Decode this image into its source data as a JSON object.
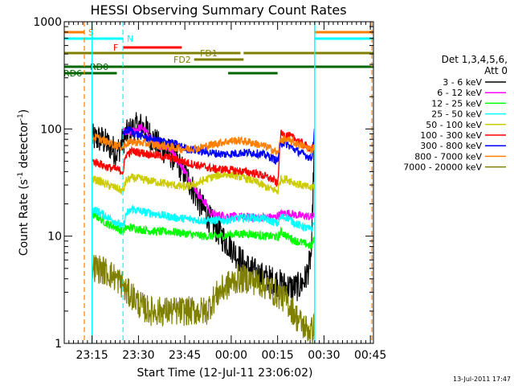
{
  "chart_data": {
    "type": "line",
    "title": "HESSI Observing Summary Count Rates",
    "xlabel": "Start Time (12-Jul-11 23:06:02)",
    "ylabel_main": "Count Rate (s",
    "ylabel_sup": "-1",
    "ylabel_tail": " detector",
    "ylabel_close": ")",
    "yscale": "log",
    "ylim": [
      1,
      1000
    ],
    "xlim_minutes": [
      0,
      100
    ],
    "x_ticks": [
      {
        "t": 9,
        "label": "23:15"
      },
      {
        "t": 24,
        "label": "23:30"
      },
      {
        "t": 39,
        "label": "23:45"
      },
      {
        "t": 54,
        "label": "00:00"
      },
      {
        "t": 69,
        "label": "00:15"
      },
      {
        "t": 84,
        "label": "00:30"
      },
      {
        "t": 99,
        "label": "00:45"
      }
    ],
    "y_ticks": [
      {
        "v": 1,
        "label": "1"
      },
      {
        "v": 10,
        "label": "10"
      },
      {
        "v": 100,
        "label": "100"
      },
      {
        "v": 1000,
        "label": "1000"
      }
    ],
    "legend": {
      "header": [
        "Det 1,3,4,5,6,",
        "Att 0"
      ],
      "placement": "right"
    },
    "series": [
      {
        "name": "3 - 6 keV",
        "color": "#000000",
        "points": [
          [
            9,
            82
          ],
          [
            12,
            80
          ],
          [
            15,
            68
          ],
          [
            17,
            60
          ],
          [
            20,
            88
          ],
          [
            23,
            104
          ],
          [
            25,
            106
          ],
          [
            27,
            95
          ],
          [
            28,
            85
          ],
          [
            30,
            72
          ],
          [
            32,
            65
          ],
          [
            34,
            60
          ],
          [
            36,
            52
          ],
          [
            38,
            42
          ],
          [
            40,
            34
          ],
          [
            42,
            26
          ],
          [
            44,
            20
          ],
          [
            46,
            16
          ],
          [
            48,
            13
          ],
          [
            50,
            11
          ],
          [
            52,
            9
          ],
          [
            54,
            8
          ],
          [
            56,
            6.5
          ],
          [
            58,
            5.5
          ],
          [
            60,
            5
          ],
          [
            62,
            4.5
          ],
          [
            64,
            4.2
          ],
          [
            66,
            4
          ],
          [
            68,
            3.8
          ],
          [
            70,
            3.6
          ],
          [
            72,
            3.4
          ],
          [
            74,
            3.3
          ],
          [
            76,
            3.4
          ],
          [
            78,
            4
          ],
          [
            79,
            5
          ],
          [
            80,
            7
          ],
          [
            81,
            110
          ]
        ]
      },
      {
        "name": "6 - 12 keV",
        "color": "#ff00ff",
        "points": [
          [
            19,
            95
          ],
          [
            21,
            90
          ],
          [
            23,
            98
          ],
          [
            25,
            104
          ],
          [
            27,
            90
          ],
          [
            29,
            75
          ],
          [
            31,
            70
          ],
          [
            33,
            68
          ],
          [
            35,
            62
          ],
          [
            36,
            55
          ],
          [
            38,
            45
          ],
          [
            40,
            36
          ],
          [
            42,
            29
          ],
          [
            44,
            23
          ],
          [
            46,
            20
          ],
          [
            47,
            17
          ],
          [
            48,
            16
          ],
          [
            52,
            15.5
          ],
          [
            58,
            15
          ],
          [
            64,
            15
          ],
          [
            68,
            15
          ],
          [
            70,
            16
          ],
          [
            72,
            16.5
          ],
          [
            74,
            16
          ],
          [
            76,
            15.5
          ],
          [
            78,
            15.5
          ],
          [
            80,
            15
          ],
          [
            81,
            16
          ]
        ]
      },
      {
        "name": "12 - 25 keV",
        "color": "#00ff00",
        "points": [
          [
            9,
            16
          ],
          [
            11,
            15
          ],
          [
            14,
            13
          ],
          [
            17,
            12
          ],
          [
            19,
            11
          ],
          [
            20,
            12
          ],
          [
            22,
            12
          ],
          [
            25,
            11.5
          ],
          [
            30,
            11
          ],
          [
            35,
            11
          ],
          [
            40,
            10.5
          ],
          [
            45,
            10
          ],
          [
            50,
            10
          ],
          [
            55,
            10.5
          ],
          [
            60,
            10.5
          ],
          [
            65,
            10
          ],
          [
            68,
            10
          ],
          [
            69,
            9.5
          ],
          [
            70,
            11
          ],
          [
            72,
            10
          ],
          [
            75,
            9
          ],
          [
            78,
            8.5
          ],
          [
            80,
            8
          ],
          [
            81,
            10
          ]
        ]
      },
      {
        "name": "25 - 50 keV",
        "color": "#00ffff",
        "points": [
          [
            9,
            18
          ],
          [
            11,
            17
          ],
          [
            14,
            15
          ],
          [
            17,
            13.5
          ],
          [
            19,
            12
          ],
          [
            20,
            16
          ],
          [
            22,
            18
          ],
          [
            25,
            17
          ],
          [
            30,
            16
          ],
          [
            35,
            15
          ],
          [
            40,
            14.5
          ],
          [
            45,
            14
          ],
          [
            50,
            14
          ],
          [
            55,
            14.5
          ],
          [
            60,
            15
          ],
          [
            65,
            14.5
          ],
          [
            68,
            13.5
          ],
          [
            69,
            13
          ],
          [
            70,
            15
          ],
          [
            72,
            15
          ],
          [
            75,
            13
          ],
          [
            78,
            12
          ],
          [
            80,
            11.5
          ],
          [
            81,
            14
          ]
        ]
      },
      {
        "name": "50 - 100 keV",
        "color": "#cccc00",
        "points": [
          [
            9,
            34
          ],
          [
            11,
            33
          ],
          [
            14,
            30
          ],
          [
            17,
            28
          ],
          [
            19,
            26
          ],
          [
            20,
            33
          ],
          [
            22,
            35
          ],
          [
            25,
            34
          ],
          [
            30,
            32
          ],
          [
            35,
            30
          ],
          [
            38,
            29
          ],
          [
            40,
            29
          ],
          [
            43,
            31
          ],
          [
            45,
            33
          ],
          [
            47,
            35
          ],
          [
            50,
            37
          ],
          [
            53,
            38
          ],
          [
            55,
            37
          ],
          [
            58,
            35
          ],
          [
            61,
            33
          ],
          [
            64,
            30
          ],
          [
            66,
            28
          ],
          [
            68,
            27
          ],
          [
            69,
            26
          ],
          [
            70,
            34
          ],
          [
            72,
            34
          ],
          [
            75,
            31
          ],
          [
            78,
            29
          ],
          [
            80,
            28
          ],
          [
            81,
            30
          ]
        ]
      },
      {
        "name": "100 - 300 keV",
        "color": "#ff0000",
        "points": [
          [
            9,
            50
          ],
          [
            11,
            48
          ],
          [
            14,
            44
          ],
          [
            17,
            42
          ],
          [
            19,
            40
          ],
          [
            20,
            58
          ],
          [
            22,
            62
          ],
          [
            25,
            60
          ],
          [
            28,
            58
          ],
          [
            31,
            56
          ],
          [
            34,
            54
          ],
          [
            36,
            52
          ],
          [
            38,
            50
          ],
          [
            40,
            48
          ],
          [
            43,
            46
          ],
          [
            46,
            44
          ],
          [
            49,
            42
          ],
          [
            52,
            42
          ],
          [
            55,
            41
          ],
          [
            58,
            40
          ],
          [
            61,
            39
          ],
          [
            64,
            37
          ],
          [
            66,
            35
          ],
          [
            68,
            33
          ],
          [
            69,
            30
          ],
          [
            70,
            90
          ],
          [
            72,
            88
          ],
          [
            75,
            80
          ],
          [
            78,
            70
          ],
          [
            80,
            65
          ],
          [
            81,
            70
          ]
        ]
      },
      {
        "name": "300 - 800 keV",
        "color": "#0000ff",
        "points": [
          [
            19,
            92
          ],
          [
            21,
            98
          ],
          [
            24,
            88
          ],
          [
            27,
            82
          ],
          [
            30,
            78
          ],
          [
            33,
            76
          ],
          [
            36,
            72
          ],
          [
            38,
            68
          ],
          [
            40,
            65
          ],
          [
            43,
            63
          ],
          [
            46,
            61
          ],
          [
            49,
            59
          ],
          [
            52,
            58
          ],
          [
            55,
            59
          ],
          [
            58,
            60
          ],
          [
            61,
            60
          ],
          [
            64,
            58
          ],
          [
            66,
            56
          ],
          [
            68,
            52
          ],
          [
            69,
            50
          ],
          [
            70,
            75
          ],
          [
            72,
            72
          ],
          [
            75,
            63
          ],
          [
            78,
            57
          ],
          [
            80,
            53
          ],
          [
            81,
            100
          ]
        ]
      },
      {
        "name": "800 - 7000 keV",
        "color": "#ff8000",
        "points": [
          [
            9,
            84
          ],
          [
            11,
            82
          ],
          [
            14,
            75
          ],
          [
            17,
            70
          ],
          [
            19,
            68
          ],
          [
            20,
            73
          ],
          [
            22,
            76
          ],
          [
            25,
            74
          ],
          [
            28,
            72
          ],
          [
            31,
            70
          ],
          [
            34,
            68
          ],
          [
            37,
            66
          ],
          [
            40,
            65
          ],
          [
            43,
            66
          ],
          [
            46,
            69
          ],
          [
            49,
            73
          ],
          [
            52,
            76
          ],
          [
            55,
            78
          ],
          [
            58,
            77
          ],
          [
            61,
            74
          ],
          [
            64,
            70
          ],
          [
            66,
            67
          ],
          [
            68,
            63
          ],
          [
            69,
            58
          ],
          [
            70,
            80
          ],
          [
            72,
            79
          ],
          [
            75,
            73
          ],
          [
            78,
            68
          ],
          [
            80,
            64
          ],
          [
            81,
            70
          ]
        ]
      },
      {
        "name": "7000 - 20000 keV",
        "color": "#808000",
        "points": [
          [
            9,
            5.2
          ],
          [
            11,
            5
          ],
          [
            14,
            4.6
          ],
          [
            17,
            4
          ],
          [
            19,
            3.5
          ],
          [
            20,
            3
          ],
          [
            22,
            2.8
          ],
          [
            25,
            2.2
          ],
          [
            28,
            2
          ],
          [
            31,
            2
          ],
          [
            34,
            2
          ],
          [
            37,
            2
          ],
          [
            40,
            2
          ],
          [
            43,
            2
          ],
          [
            46,
            2
          ],
          [
            48,
            2.5
          ],
          [
            50,
            3
          ],
          [
            53,
            3.5
          ],
          [
            56,
            4
          ],
          [
            59,
            4
          ],
          [
            62,
            3.8
          ],
          [
            65,
            3.5
          ],
          [
            68,
            3
          ],
          [
            70,
            2.8
          ],
          [
            72,
            2.5
          ],
          [
            74,
            2
          ],
          [
            76,
            1.6
          ],
          [
            78,
            1.4
          ],
          [
            80,
            1.3
          ],
          [
            81,
            1.5
          ]
        ]
      }
    ],
    "state_bars": [
      {
        "label": "S",
        "color": "#ff8000",
        "level": 0,
        "segments": [
          [
            0,
            6.5
          ],
          [
            81,
            100
          ]
        ]
      },
      {
        "label": "N",
        "color": "#00ffff",
        "level": 1,
        "segments": [
          [
            0,
            19
          ],
          [
            81,
            100
          ]
        ]
      },
      {
        "label": "F",
        "color": "#ff0000",
        "level": 2,
        "segments": [
          [
            19,
            38
          ]
        ]
      },
      {
        "label": "FD1",
        "color": "#808000",
        "level": 3,
        "segments": [
          [
            0,
            57
          ],
          [
            58,
            100
          ]
        ]
      },
      {
        "label": "FD2",
        "color": "#808000",
        "level": 4,
        "segments": [
          [
            42,
            58
          ]
        ]
      },
      {
        "label": "RD0",
        "color": "#006600",
        "level": 5,
        "segments": [
          [
            0,
            100
          ]
        ]
      },
      {
        "label": "RD6",
        "color": "#006600",
        "level": 6,
        "segments": [
          [
            0,
            17
          ],
          [
            53,
            69
          ]
        ]
      }
    ],
    "vlines": [
      {
        "t": 6.5,
        "color": "#ff8000"
      },
      {
        "t": 19,
        "color": "#00ffff"
      },
      {
        "t": 99.5,
        "color": "#ff8000"
      }
    ],
    "solid_vlines": [
      {
        "t": 9,
        "color": "#00ffff"
      },
      {
        "t": 81,
        "color": "#00ffff"
      }
    ],
    "footer_date": "13-Jul-2011 17:47"
  }
}
